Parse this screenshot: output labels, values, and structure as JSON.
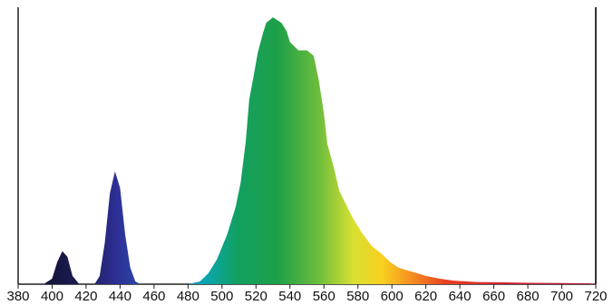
{
  "chart_data": {
    "type": "area",
    "x": [
      380,
      395,
      400,
      403,
      406,
      409,
      412,
      416,
      425,
      428,
      431,
      434,
      437,
      440,
      443,
      446,
      449,
      452,
      480,
      487,
      492,
      497,
      503,
      508,
      511,
      514,
      516,
      519,
      521,
      524,
      526,
      530,
      535,
      538,
      540,
      545,
      550,
      554,
      557,
      560,
      562,
      566,
      569,
      573,
      577,
      582,
      588,
      594,
      599,
      604,
      609,
      615,
      620,
      628,
      636,
      650,
      663,
      680,
      700,
      716,
      720
    ],
    "values": [
      0,
      0,
      2,
      8,
      12,
      10,
      3,
      0,
      0,
      3,
      15,
      33,
      41,
      35,
      18,
      6,
      1,
      0,
      0,
      1,
      4,
      9,
      18,
      28,
      37,
      52,
      67,
      77,
      84,
      91,
      95,
      97,
      95,
      92,
      88,
      85,
      85,
      83,
      74,
      62,
      51,
      42,
      34,
      29,
      24,
      19,
      14,
      11,
      8,
      6,
      5,
      4,
      3,
      2,
      1.3,
      0.8,
      0.7,
      0.5,
      0.4,
      0.3,
      0
    ],
    "xlim": [
      380,
      720
    ],
    "xticks": [
      380,
      400,
      420,
      440,
      460,
      480,
      500,
      520,
      540,
      560,
      580,
      600,
      620,
      640,
      660,
      680,
      700,
      720
    ],
    "ylim": [
      0,
      100
    ]
  }
}
